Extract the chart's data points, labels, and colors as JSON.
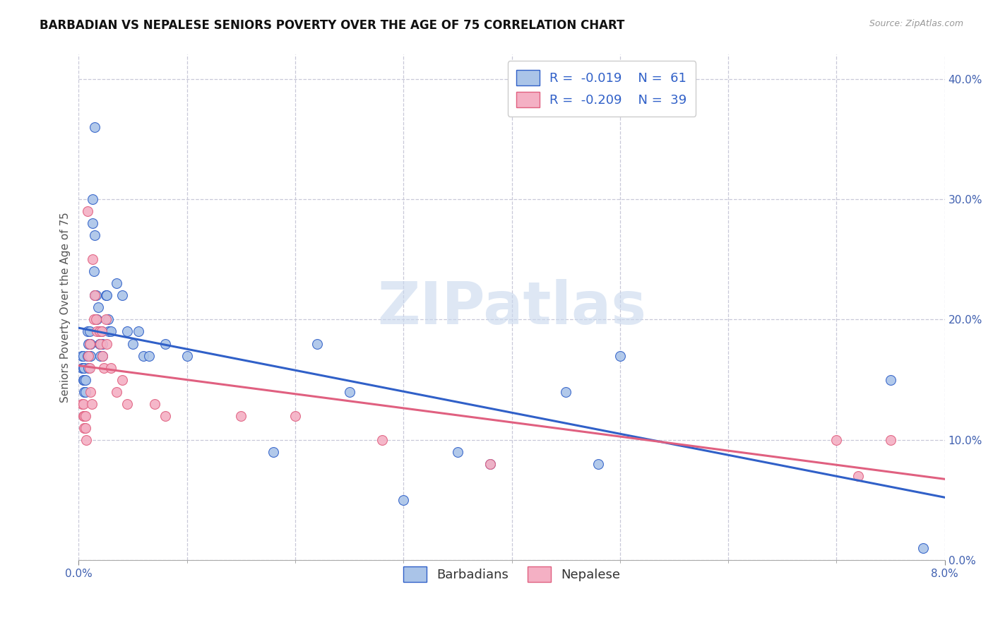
{
  "title": "BARBADIAN VS NEPALESE SENIORS POVERTY OVER THE AGE OF 75 CORRELATION CHART",
  "source": "Source: ZipAtlas.com",
  "ylabel": "Seniors Poverty Over the Age of 75",
  "xlim": [
    0.0,
    0.08
  ],
  "ylim": [
    0.0,
    0.42
  ],
  "xtick_labels_show": [
    "0.0%",
    "8.0%"
  ],
  "xtick_labels_pos": [
    0.0,
    0.08
  ],
  "yticks": [
    0.0,
    0.1,
    0.2,
    0.3,
    0.4
  ],
  "ytick_labels": [
    "0.0%",
    "10.0%",
    "20.0%",
    "30.0%",
    "40.0%"
  ],
  "minor_xticks": [
    0.01,
    0.02,
    0.03,
    0.04,
    0.05,
    0.06,
    0.07
  ],
  "barbadian_color": "#aac4e8",
  "nepalese_color": "#f4b0c4",
  "line_barbadian_color": "#3060c8",
  "line_nepalese_color": "#e06080",
  "watermark": "ZIPatlas",
  "legend_R_barbadian": "-0.019",
  "legend_N_barbadian": "61",
  "legend_R_nepalese": "-0.209",
  "legend_N_nepalese": "39",
  "barbadian_x": [
    0.0003,
    0.0003,
    0.0004,
    0.0004,
    0.0004,
    0.0005,
    0.0005,
    0.0005,
    0.0006,
    0.0006,
    0.0008,
    0.0008,
    0.0009,
    0.0009,
    0.0009,
    0.001,
    0.001,
    0.001,
    0.0011,
    0.0011,
    0.0013,
    0.0013,
    0.0014,
    0.0015,
    0.0015,
    0.0015,
    0.0016,
    0.0017,
    0.0018,
    0.0019,
    0.0019,
    0.002,
    0.002,
    0.0021,
    0.0022,
    0.0022,
    0.0025,
    0.0026,
    0.0027,
    0.0028,
    0.003,
    0.0035,
    0.004,
    0.0045,
    0.005,
    0.0055,
    0.006,
    0.0065,
    0.008,
    0.01,
    0.018,
    0.022,
    0.025,
    0.03,
    0.035,
    0.038,
    0.045,
    0.048,
    0.05,
    0.075,
    0.078
  ],
  "barbadian_y": [
    0.17,
    0.16,
    0.17,
    0.16,
    0.15,
    0.16,
    0.15,
    0.14,
    0.15,
    0.14,
    0.19,
    0.17,
    0.18,
    0.17,
    0.16,
    0.19,
    0.18,
    0.17,
    0.18,
    0.17,
    0.3,
    0.28,
    0.24,
    0.36,
    0.27,
    0.22,
    0.22,
    0.2,
    0.21,
    0.18,
    0.19,
    0.18,
    0.17,
    0.19,
    0.18,
    0.17,
    0.22,
    0.22,
    0.2,
    0.19,
    0.19,
    0.23,
    0.22,
    0.19,
    0.18,
    0.19,
    0.17,
    0.17,
    0.18,
    0.17,
    0.09,
    0.18,
    0.14,
    0.05,
    0.09,
    0.08,
    0.14,
    0.08,
    0.17,
    0.15,
    0.01
  ],
  "nepalese_x": [
    0.0003,
    0.0004,
    0.0004,
    0.0005,
    0.0005,
    0.0006,
    0.0006,
    0.0007,
    0.0008,
    0.0009,
    0.001,
    0.001,
    0.0011,
    0.0012,
    0.0013,
    0.0014,
    0.0015,
    0.0016,
    0.0017,
    0.0019,
    0.002,
    0.0021,
    0.0022,
    0.0023,
    0.0025,
    0.0026,
    0.003,
    0.0035,
    0.004,
    0.0045,
    0.007,
    0.008,
    0.015,
    0.02,
    0.028,
    0.038,
    0.07,
    0.072,
    0.075
  ],
  "nepalese_y": [
    0.13,
    0.13,
    0.12,
    0.12,
    0.11,
    0.12,
    0.11,
    0.1,
    0.29,
    0.17,
    0.18,
    0.16,
    0.14,
    0.13,
    0.25,
    0.2,
    0.22,
    0.2,
    0.19,
    0.19,
    0.18,
    0.19,
    0.17,
    0.16,
    0.2,
    0.18,
    0.16,
    0.14,
    0.15,
    0.13,
    0.13,
    0.12,
    0.12,
    0.12,
    0.1,
    0.08,
    0.1,
    0.07,
    0.1
  ],
  "grid_color": "#c8c8d8",
  "background_color": "#ffffff",
  "title_fontsize": 12,
  "label_fontsize": 11,
  "tick_fontsize": 11,
  "legend_fontsize": 13
}
